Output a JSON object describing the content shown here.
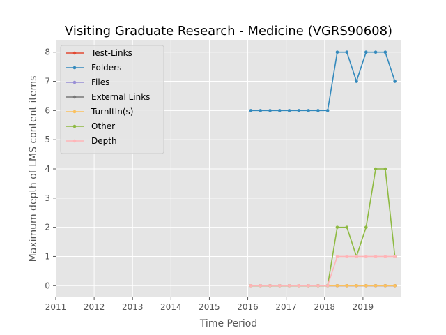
{
  "chart_data": {
    "type": "line",
    "title": "Visiting Graduate Research - Medicine (VGRS90608)",
    "xlabel": "Time Period",
    "ylabel": "Maximum depth of LMS content items",
    "xlim": [
      2011,
      2020.0
    ],
    "ylim": [
      -0.4,
      8.4
    ],
    "xticks": [
      2011,
      2012,
      2013,
      2014,
      2015,
      2016,
      2017,
      2018,
      2019
    ],
    "yticks": [
      0,
      1,
      2,
      3,
      4,
      5,
      6,
      7,
      8
    ],
    "grid": true,
    "legend_position": "top-left",
    "x": [
      2016.08,
      2016.33,
      2016.58,
      2016.83,
      2017.08,
      2017.33,
      2017.58,
      2017.83,
      2018.08,
      2018.33,
      2018.58,
      2018.83,
      2019.08,
      2019.33,
      2019.58,
      2019.83
    ],
    "series": [
      {
        "name": "Test-Links",
        "color": "#e24a33",
        "values": [
          0,
          0,
          0,
          0,
          0,
          0,
          0,
          0,
          0,
          0,
          0,
          0,
          0,
          0,
          0,
          0
        ]
      },
      {
        "name": "Folders",
        "color": "#348abd",
        "values": [
          6,
          6,
          6,
          6,
          6,
          6,
          6,
          6,
          6,
          8,
          8,
          7,
          8,
          8,
          8,
          7
        ]
      },
      {
        "name": "Files",
        "color": "#988ed5",
        "values": [
          0,
          0,
          0,
          0,
          0,
          0,
          0,
          0,
          0,
          0,
          0,
          0,
          0,
          0,
          0,
          0
        ]
      },
      {
        "name": "External Links",
        "color": "#777777",
        "values": [
          0,
          0,
          0,
          0,
          0,
          0,
          0,
          0,
          0,
          0,
          0,
          0,
          0,
          0,
          0,
          0
        ]
      },
      {
        "name": "TurnItIn(s)",
        "color": "#fbc15e",
        "values": [
          0,
          0,
          0,
          0,
          0,
          0,
          0,
          0,
          0,
          0,
          0,
          0,
          0,
          0,
          0,
          0
        ]
      },
      {
        "name": "Other",
        "color": "#8eba42",
        "values": [
          0,
          0,
          0,
          0,
          0,
          0,
          0,
          0,
          0,
          2,
          2,
          1,
          2,
          4,
          4,
          1
        ]
      },
      {
        "name": "Depth",
        "color": "#ffb5b8",
        "values": [
          0,
          0,
          0,
          0,
          0,
          0,
          0,
          0,
          0,
          1,
          1,
          1,
          1,
          1,
          1,
          1
        ]
      }
    ]
  }
}
